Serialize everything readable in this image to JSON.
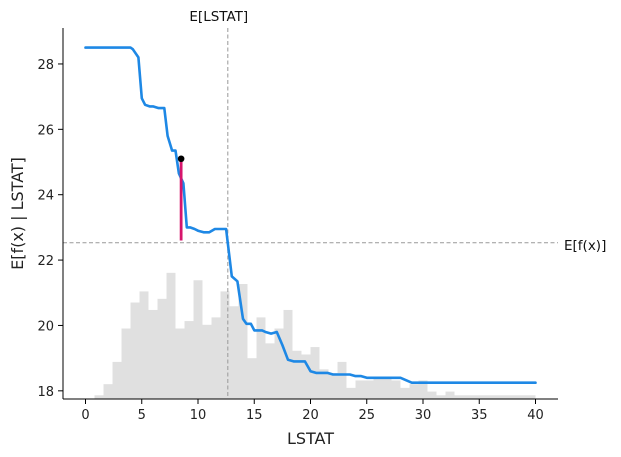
{
  "chart_data": {
    "type": "line",
    "xlabel": "LSTAT",
    "ylabel": "E[f(x) | LSTAT]",
    "xlim": [
      -2,
      42
    ],
    "ylim": [
      17.75,
      29.1
    ],
    "xticks": [
      0,
      5,
      10,
      15,
      20,
      25,
      30,
      35,
      40
    ],
    "yticks": [
      18,
      20,
      22,
      24,
      26,
      28
    ],
    "grid": false,
    "series": [
      {
        "color": "#1e88e5",
        "x": [
          0,
          4,
          4.2,
          4.7,
          5.0,
          5.3,
          5.7,
          6.0,
          6.5,
          7.0,
          7.3,
          7.7,
          8.0,
          8.3,
          8.7,
          9.0,
          9.3,
          9.7,
          10.0,
          10.5,
          11.0,
          11.5,
          12.0,
          12.5,
          13.0,
          13.5,
          14.0,
          14.3,
          14.7,
          15.0,
          15.3,
          15.7,
          16.0,
          16.5,
          17.0,
          17.5,
          18.0,
          18.5,
          19.0,
          19.5,
          20.0,
          20.5,
          21.0,
          21.5,
          22.0,
          22.5,
          23.0,
          23.5,
          24.0,
          24.5,
          25.0,
          25.5,
          26.0,
          26.5,
          27.0,
          27.5,
          28.0,
          29.0,
          30.0,
          31.0,
          35.0,
          40.0
        ],
        "y": [
          28.5,
          28.5,
          28.45,
          28.2,
          26.95,
          26.75,
          26.7,
          26.7,
          26.65,
          26.65,
          25.8,
          25.35,
          25.35,
          24.65,
          24.35,
          23.0,
          23.0,
          22.95,
          22.9,
          22.85,
          22.85,
          22.95,
          22.95,
          22.95,
          21.5,
          21.35,
          20.2,
          20.05,
          20.05,
          19.85,
          19.85,
          19.85,
          19.8,
          19.75,
          19.8,
          19.4,
          18.95,
          18.9,
          18.9,
          18.9,
          18.6,
          18.55,
          18.55,
          18.55,
          18.5,
          18.5,
          18.5,
          18.5,
          18.45,
          18.45,
          18.4,
          18.4,
          18.4,
          18.4,
          18.4,
          18.4,
          18.4,
          18.25,
          18.25,
          18.25,
          18.25,
          18.25
        ]
      }
    ],
    "mean_x": 12.65,
    "mean_x_label": "E[LSTAT]",
    "mean_fx": 22.53,
    "mean_fx_label": "E[f(x)]",
    "highlight_point": {
      "x": 8.5,
      "y": 25.1,
      "base": 22.6,
      "color": "#d6156c"
    },
    "histogram": {
      "color": "#e0e0e0",
      "bin_start": 0,
      "bin_width": 0.8,
      "heights": [
        0.0,
        0.01,
        0.04,
        0.1,
        0.19,
        0.26,
        0.29,
        0.24,
        0.27,
        0.34,
        0.19,
        0.21,
        0.32,
        0.2,
        0.22,
        0.29,
        0.25,
        0.31,
        0.11,
        0.22,
        0.15,
        0.19,
        0.24,
        0.13,
        0.12,
        0.14,
        0.08,
        0.07,
        0.1,
        0.03,
        0.05,
        0.05,
        0.06,
        0.06,
        0.05,
        0.03,
        0.04,
        0.05,
        0.02,
        0.01,
        0.02,
        0.01,
        0.01,
        0.01,
        0.01,
        0.01,
        0.01,
        0.01,
        0.01,
        0.01
      ]
    }
  }
}
